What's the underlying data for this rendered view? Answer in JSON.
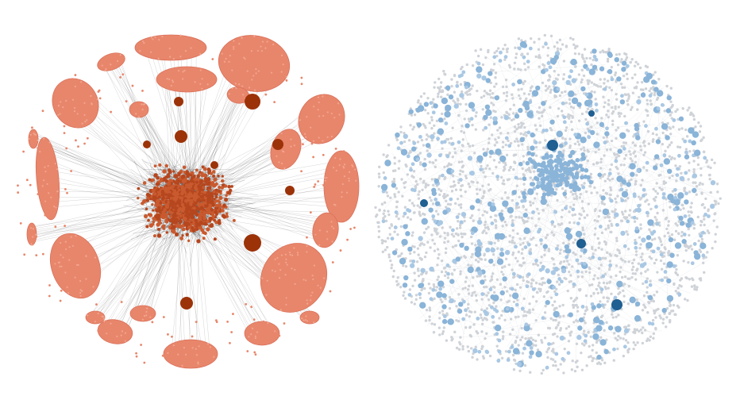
{
  "left_network": {
    "node_color": "#e8866b",
    "node_stroke": "#d9705a",
    "core_color": "#b5461e",
    "hub_color": "#9c3208",
    "edge_color": "#333333"
  },
  "right_network": {
    "background_node_color": "#cfd3d8",
    "mid_node_color": "#8ab4d8",
    "light_node_color": "#a9c8e4",
    "hub_color": "#1f5f91",
    "edge_color": "#6b7a88"
  }
}
